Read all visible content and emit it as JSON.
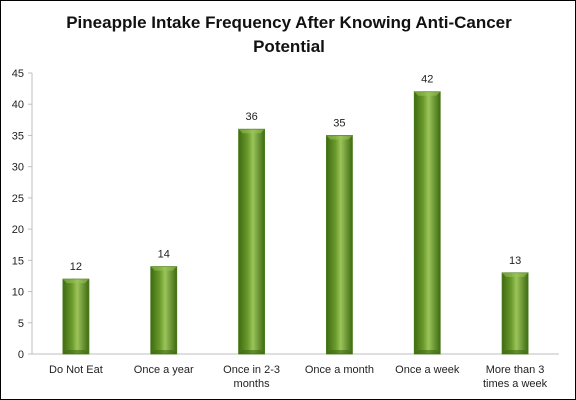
{
  "chart_data": {
    "type": "bar",
    "title": "Pineapple Intake Frequency After Knowing Anti-Cancer Potential",
    "categories": [
      [
        "Do Not Eat"
      ],
      [
        "Once a year"
      ],
      [
        "Once in 2-3",
        "months"
      ],
      [
        "Once a month"
      ],
      [
        "Once a week"
      ],
      [
        "More than 3",
        "times a week"
      ]
    ],
    "values": [
      12,
      14,
      36,
      35,
      42,
      13
    ],
    "ylim": [
      0,
      45
    ],
    "yticks": [
      0,
      5,
      10,
      15,
      20,
      25,
      30,
      35,
      40,
      45
    ],
    "grid": false,
    "xlabel": "",
    "ylabel": "",
    "colors": {
      "bar_dark": "#3f6b12",
      "bar_mid": "#6a9a2c",
      "bar_light": "#9bc45a",
      "bar_edge": "#4a7a18",
      "axis": "#bfbfbf"
    }
  }
}
